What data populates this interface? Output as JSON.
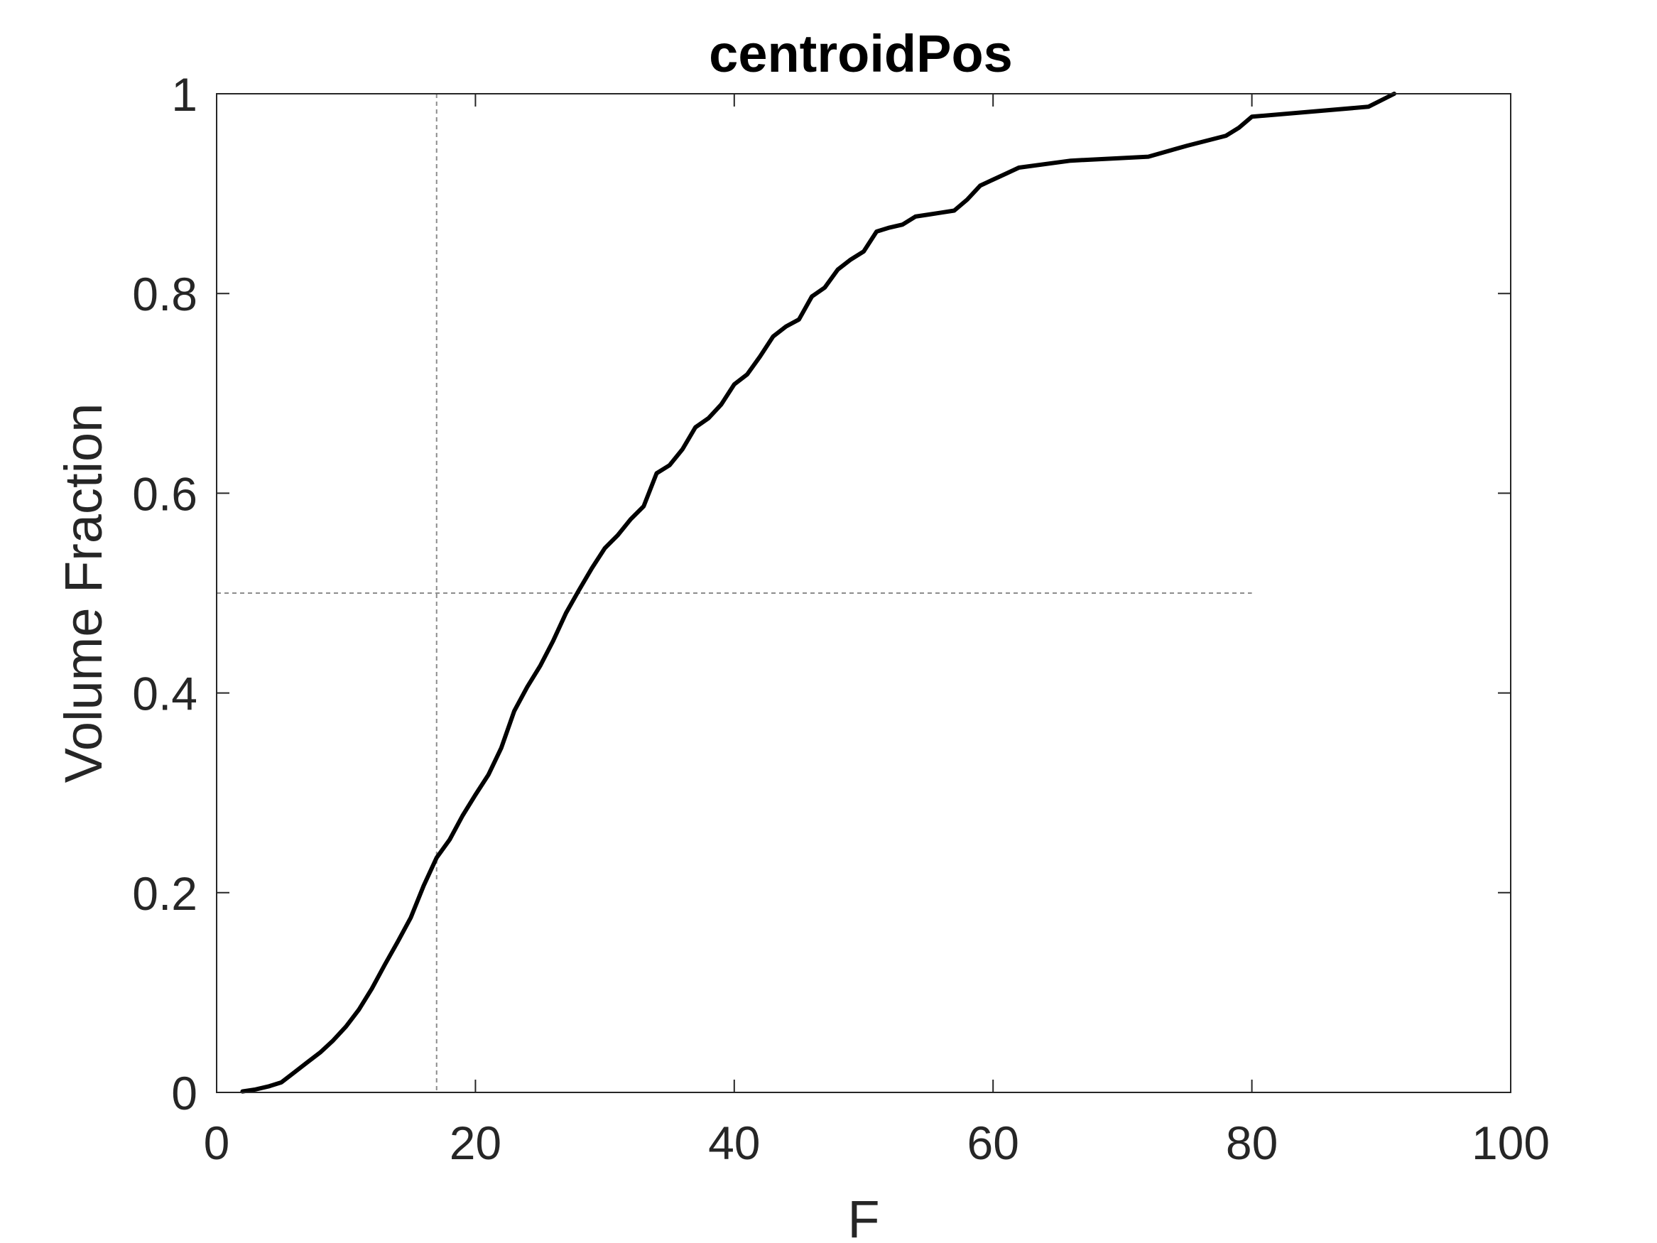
{
  "chart_data": {
    "type": "line",
    "title": "centroidPos",
    "xlabel": "F",
    "ylabel": "Volume Fraction",
    "xlim": [
      0,
      100
    ],
    "ylim": [
      0,
      1
    ],
    "xticks": [
      "0",
      "20",
      "40",
      "60",
      "80",
      "100"
    ],
    "yticks": [
      "0",
      "0.2",
      "0.4",
      "0.6",
      "0.8",
      "1"
    ],
    "grid": false,
    "legend": "none",
    "reference_lines": {
      "vertical_x": 17,
      "horizontal_y": 0.5,
      "horizontal_x_end": 80
    },
    "series": [
      {
        "color": "#000000",
        "x": [
          2,
          3,
          4,
          5,
          6,
          7,
          8,
          9,
          10,
          11,
          12,
          13,
          14,
          15,
          16,
          17,
          18,
          19,
          20,
          21,
          22,
          23,
          24,
          25,
          26,
          27,
          28,
          29,
          30,
          31,
          32,
          33,
          34,
          35,
          36,
          37,
          38,
          39,
          40,
          41,
          42,
          43,
          44,
          45,
          46,
          47,
          48,
          49,
          50,
          51,
          52,
          53,
          54,
          55,
          56,
          57,
          58,
          59,
          60,
          61,
          62,
          66,
          72,
          75,
          78,
          79,
          80,
          89,
          91
        ],
        "y": [
          0.001,
          0.003,
          0.006,
          0.01,
          0.02,
          0.03,
          0.04,
          0.052,
          0.066,
          0.083,
          0.104,
          0.128,
          0.151,
          0.175,
          0.207,
          0.235,
          0.253,
          0.277,
          0.298,
          0.318,
          0.345,
          0.382,
          0.406,
          0.427,
          0.452,
          0.48,
          0.503,
          0.525,
          0.545,
          0.558,
          0.574,
          0.587,
          0.62,
          0.628,
          0.644,
          0.666,
          0.675,
          0.689,
          0.709,
          0.719,
          0.737,
          0.757,
          0.767,
          0.774,
          0.797,
          0.806,
          0.824,
          0.834,
          0.842,
          0.862,
          0.866,
          0.869,
          0.877,
          0.879,
          0.881,
          0.883,
          0.894,
          0.908,
          0.914,
          0.92,
          0.926,
          0.933,
          0.937,
          0.948,
          0.958,
          0.966,
          0.977,
          0.987,
          1.0
        ]
      }
    ]
  }
}
